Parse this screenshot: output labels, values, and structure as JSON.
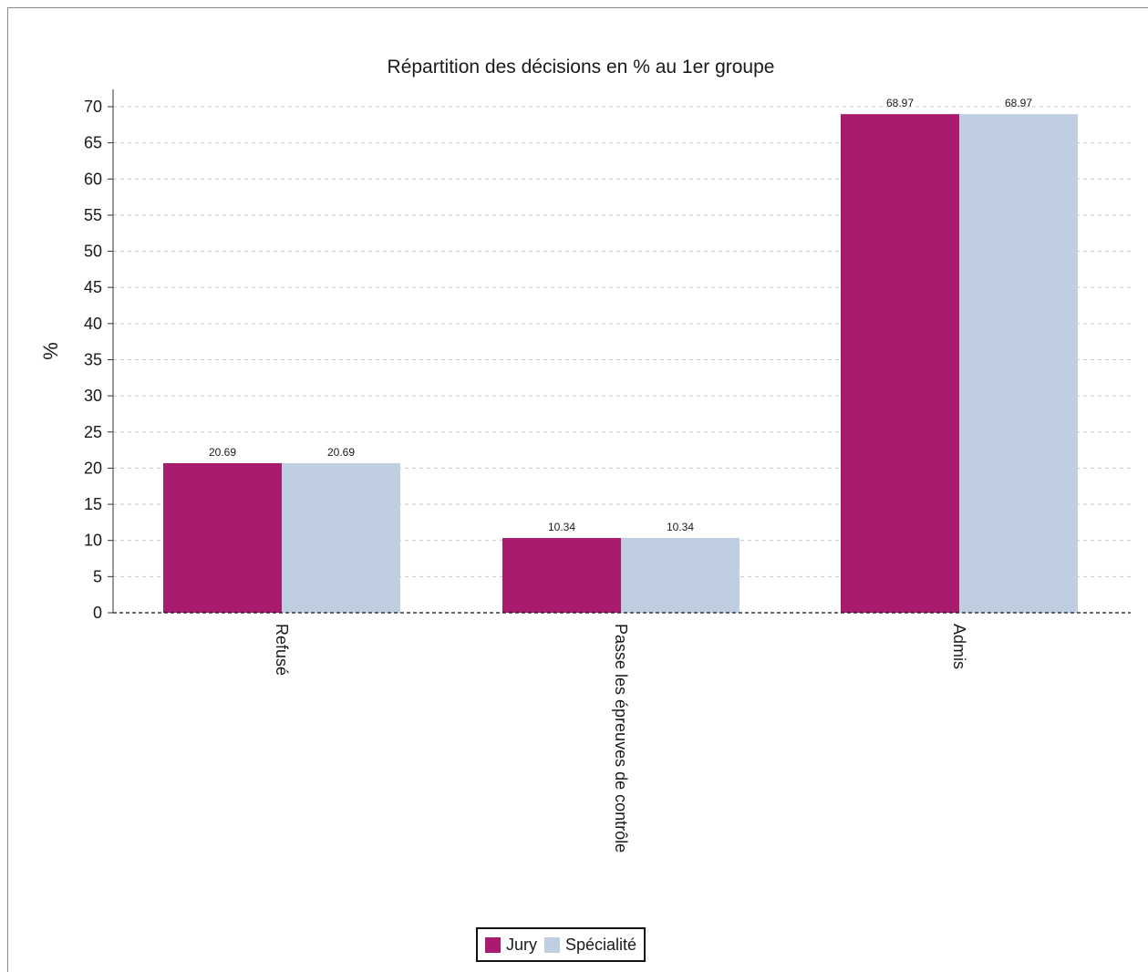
{
  "chart_data": {
    "type": "bar",
    "title": "Répartition des décisions en % au 1er groupe",
    "xlabel": "",
    "ylabel": "%",
    "categories": [
      "Refusé",
      "Passe les épreuves de contrôle",
      "Admis"
    ],
    "series": [
      {
        "name": "Jury",
        "values": [
          20.69,
          10.34,
          68.97
        ],
        "color": "#a91b6e"
      },
      {
        "name": "Spécialité",
        "values": [
          20.69,
          10.34,
          68.97
        ],
        "color": "#bfcfe1"
      }
    ],
    "ylim": [
      0,
      70
    ],
    "yticks": [
      0,
      5,
      10,
      15,
      20,
      25,
      30,
      35,
      40,
      45,
      50,
      55,
      60,
      65,
      70
    ],
    "data_labels": [
      [
        "20.69",
        "10.34",
        "68.97"
      ],
      [
        "20.69",
        "10.34",
        "68.97"
      ]
    ],
    "grid": true,
    "legend_position": "bottom-center"
  }
}
